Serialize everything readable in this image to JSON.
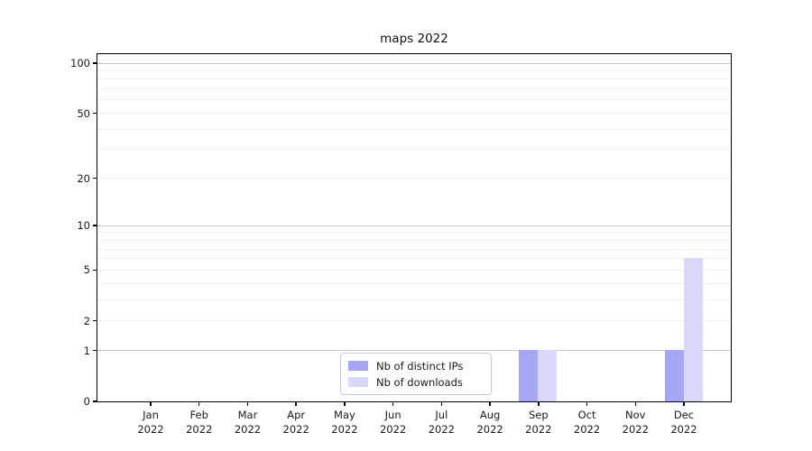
{
  "title": "maps 2022",
  "legend": {
    "items": [
      {
        "label": "Nb of distinct IPs",
        "color": "#a6a6f2"
      },
      {
        "label": "Nb of downloads",
        "color": "#d8d8f8"
      }
    ],
    "position": "lower center"
  },
  "colors": {
    "major_grid": "#c6c6c6",
    "minor_grid": "#f0f0f0",
    "axis": "#000000",
    "text": "#1a1a1a",
    "background": "#ffffff"
  },
  "chart_data": {
    "type": "bar",
    "title": "maps 2022",
    "categories": [
      "Jan 2022",
      "Feb 2022",
      "Mar 2022",
      "Apr 2022",
      "May 2022",
      "Jun 2022",
      "Jul 2022",
      "Aug 2022",
      "Sep 2022",
      "Oct 2022",
      "Nov 2022",
      "Dec 2022"
    ],
    "x_tick_labels": [
      [
        "Jan",
        "2022"
      ],
      [
        "Feb",
        "2022"
      ],
      [
        "Mar",
        "2022"
      ],
      [
        "Apr",
        "2022"
      ],
      [
        "May",
        "2022"
      ],
      [
        "Jun",
        "2022"
      ],
      [
        "Jul",
        "2022"
      ],
      [
        "Aug",
        "2022"
      ],
      [
        "Sep",
        "2022"
      ],
      [
        "Oct",
        "2022"
      ],
      [
        "Nov",
        "2022"
      ],
      [
        "Dec",
        "2022"
      ]
    ],
    "series": [
      {
        "name": "Nb of distinct IPs",
        "color": "#a6a6f2",
        "values": [
          0,
          0,
          0,
          0,
          0,
          0,
          0,
          0,
          1,
          0,
          0,
          1
        ]
      },
      {
        "name": "Nb of downloads",
        "color": "#d8d8f8",
        "values": [
          0,
          0,
          0,
          0,
          0,
          0,
          0,
          0,
          1,
          0,
          0,
          6
        ]
      }
    ],
    "xlabel": "",
    "ylabel": "",
    "y_axis": {
      "scale": "log1p",
      "tick_values": [
        0,
        1,
        2,
        5,
        10,
        20,
        50,
        100
      ],
      "major_gridlines": [
        1,
        10,
        100
      ],
      "minor_gridlines": [
        2,
        3,
        4,
        5,
        6,
        7,
        8,
        9,
        20,
        30,
        40,
        50,
        60,
        70,
        80,
        90
      ],
      "ylim": [
        0,
        115
      ]
    },
    "grid": true,
    "legend_position": "lower center"
  }
}
